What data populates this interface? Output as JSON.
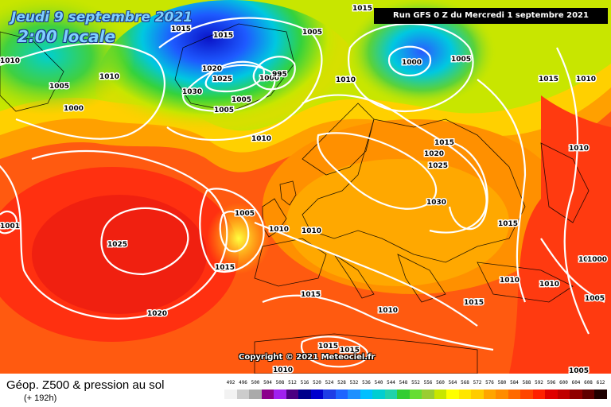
{
  "map": {
    "date_label": "Jeudi 9 septembre 2021",
    "time_label": "2:00 locale",
    "run_label": "Run GFS 0 Z du Mercredi 1 septembre 2021",
    "copyright": "Copyright © 2021 Meteociel.fr",
    "variable_title": "Géop. Z500 & pression au sol",
    "lead_time": "(+ 192h)",
    "isobar_labels": [
      "1015",
      "1015",
      "1010",
      "1005",
      "1005",
      "1005",
      "1010",
      "1000",
      "1020",
      "1025",
      "1030",
      "1000",
      "995",
      "1005",
      "1010",
      "1010",
      "1015",
      "1005",
      "1000",
      "1015",
      "1010",
      "1015",
      "1020",
      "1025",
      "1030",
      "1005",
      "1010",
      "1010",
      "1025",
      "1015",
      "1015",
      "1010",
      "1020",
      "1015",
      "1015",
      "1015",
      "1010",
      "1010",
      "1010",
      "1010",
      "1000",
      "1005",
      "1005",
      "1015",
      "1010",
      "1001"
    ],
    "scale": {
      "values": [
        "492",
        "496",
        "500",
        "504",
        "508",
        "512",
        "516",
        "520",
        "524",
        "528",
        "532",
        "536",
        "540",
        "544",
        "548",
        "552",
        "556",
        "560",
        "564",
        "568",
        "572",
        "576",
        "580",
        "584",
        "588",
        "592",
        "596",
        "600",
        "604",
        "608",
        "612"
      ],
      "colors": [
        "#f2f2f2",
        "#cccccc",
        "#aaaaaa",
        "#8b008b",
        "#a020f0",
        "#4b0082",
        "#00008b",
        "#0000cd",
        "#1e3ce6",
        "#1e64ff",
        "#1e90ff",
        "#00bfff",
        "#00ced1",
        "#20d2aa",
        "#32cd32",
        "#66dd33",
        "#9acd32",
        "#c8e600",
        "#ffff00",
        "#ffe600",
        "#ffcc00",
        "#ffa500",
        "#ff8c00",
        "#ff6a00",
        "#ff4500",
        "#ff2000",
        "#e00000",
        "#c00000",
        "#900000",
        "#600000",
        "#200000"
      ]
    }
  }
}
